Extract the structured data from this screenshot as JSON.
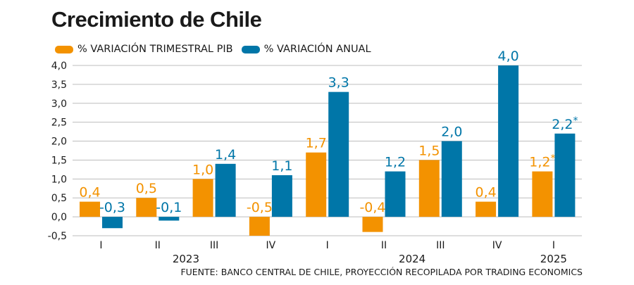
{
  "title": "Crecimiento de Chile",
  "source": "FUENTE: BANCO CENTRAL DE CHILE, PROYECCIÓN RECOPILADA POR TRADING ECONOMICS",
  "colors": {
    "quarterly": "#F39200",
    "annual": "#0076A8",
    "grid": "#bdbdbd",
    "text": "#1a1a1a"
  },
  "chart_data": {
    "type": "bar",
    "title": "Crecimiento de Chile",
    "categories": [
      "I",
      "II",
      "III",
      "IV",
      "I",
      "II",
      "III",
      "IV",
      "I"
    ],
    "years": [
      {
        "label": "2023",
        "quarters": [
          0,
          3
        ]
      },
      {
        "label": "2024",
        "quarters": [
          4,
          7
        ]
      },
      {
        "label": "2025",
        "quarters": [
          8,
          8
        ]
      }
    ],
    "series": [
      {
        "name": "% VARIACIÓN TRIMESTRAL PIB",
        "color": "#F39200",
        "values": [
          0.4,
          0.5,
          1.0,
          -0.5,
          1.7,
          -0.4,
          1.5,
          0.4,
          1.2
        ],
        "labels": [
          "0,4",
          "0,5",
          "1,0",
          "-0,5",
          "1,7",
          "-0,4",
          "1,5",
          "0,4",
          "1,2*"
        ]
      },
      {
        "name": "% VARIACIÓN ANUAL",
        "color": "#0076A8",
        "values": [
          -0.3,
          -0.1,
          1.4,
          1.1,
          3.3,
          1.2,
          2.0,
          4.0,
          2.2
        ],
        "labels": [
          "-0,3",
          "-0,1",
          "1,4",
          "1,1",
          "3,3",
          "1,2",
          "2,0",
          "4,0",
          "2,2*"
        ]
      }
    ],
    "ylim": [
      -0.5,
      4.0
    ],
    "yticks": [
      -0.5,
      0,
      0.5,
      1.0,
      1.5,
      2.0,
      2.5,
      3.0,
      3.5,
      4.0
    ],
    "ytick_labels": [
      "-0,5",
      "0,0",
      "0,5",
      "1,0",
      "1,5",
      "2,0",
      "2,5",
      "3,0",
      "3,5",
      "4,0"
    ],
    "grid": true,
    "legend_position": "top-left"
  }
}
